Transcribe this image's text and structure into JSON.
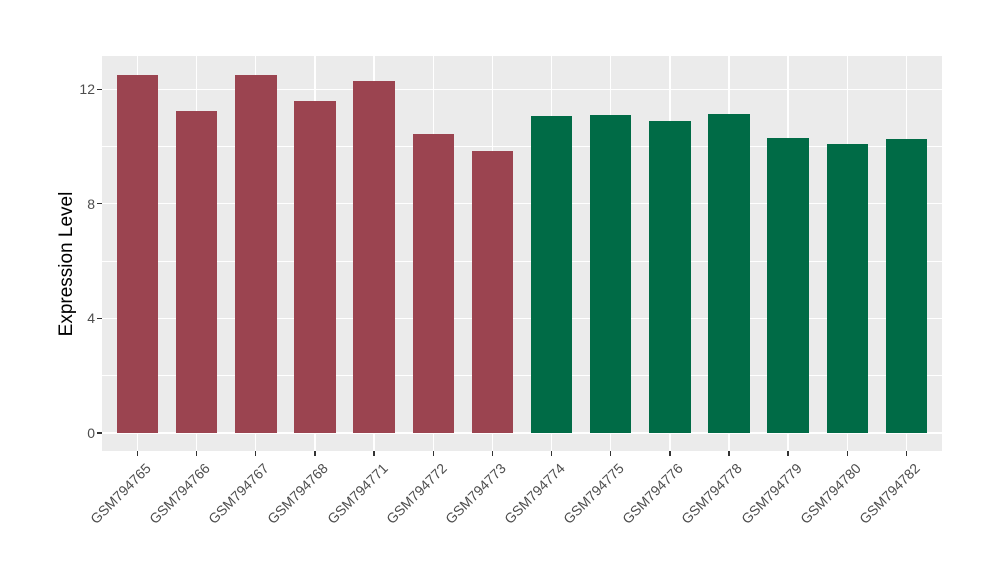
{
  "chart_data": {
    "type": "bar",
    "title": "",
    "ylabel": "Expression Level",
    "xlabel": "",
    "categories": [
      "GSM794765",
      "GSM794766",
      "GSM794767",
      "GSM794768",
      "GSM794771",
      "GSM794772",
      "GSM794773",
      "GSM794774",
      "GSM794775",
      "GSM794776",
      "GSM794778",
      "GSM794779",
      "GSM794780",
      "GSM794782"
    ],
    "values": [
      12.5,
      11.25,
      12.5,
      11.6,
      12.3,
      10.45,
      9.85,
      11.05,
      11.1,
      10.9,
      11.15,
      10.3,
      10.1,
      10.25
    ],
    "colors": [
      "#9B4450",
      "#9B4450",
      "#9B4450",
      "#9B4450",
      "#9B4450",
      "#9B4450",
      "#9B4450",
      "#006B46",
      "#006B46",
      "#006B46",
      "#006B46",
      "#006B46",
      "#006B46",
      "#006B46"
    ],
    "ylim": [
      -0.63,
      13.16
    ],
    "yticks": [
      0,
      4,
      8,
      12
    ],
    "yticks_minor": [
      2,
      6,
      10
    ],
    "legend": "none",
    "grid": "major-and-minor-horizontal, major-vertical-at-bar-centers",
    "panel_bg": "#EBEBEB",
    "grid_color": "#FFFFFF",
    "tick_color": "#333333",
    "tick_label_color": "#4D4D4D",
    "bar_width_fraction": 0.7,
    "x_label_angle_deg": 45
  }
}
